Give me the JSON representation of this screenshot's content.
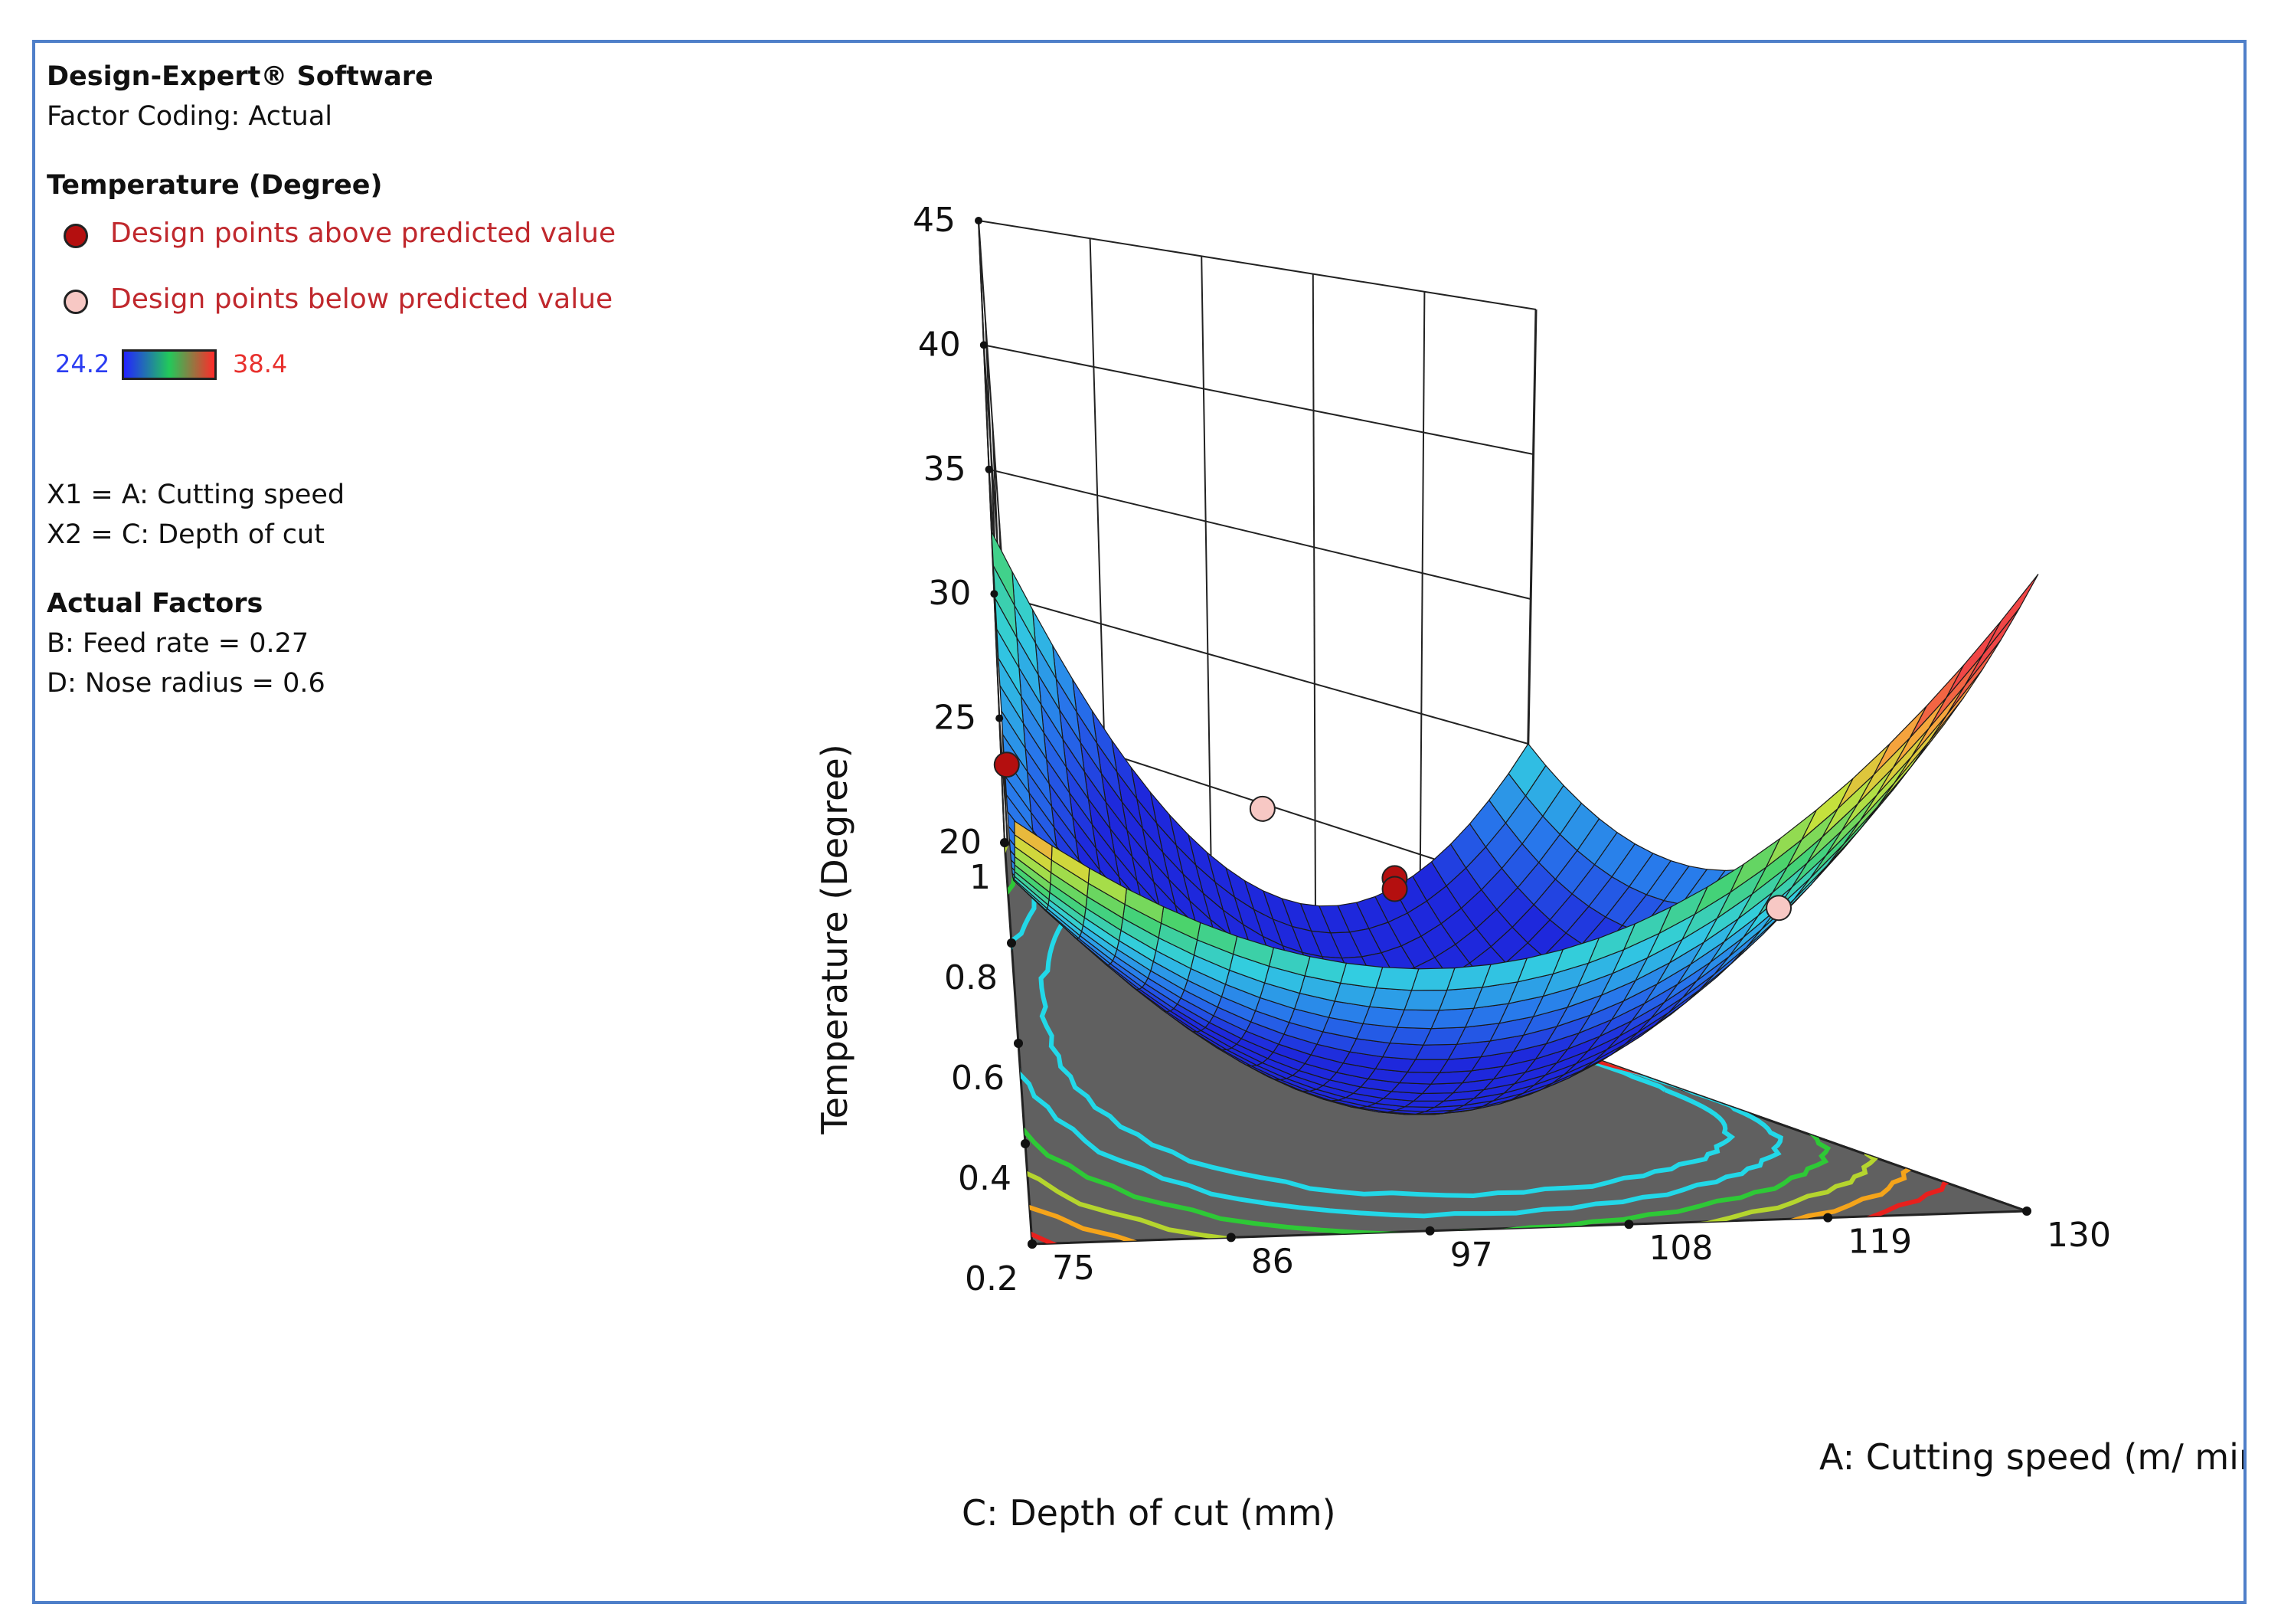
{
  "panel": {
    "software": "Design-Expert® Software",
    "coding": "Factor Coding: Actual",
    "response": "Temperature (Degree)",
    "legend_above": "Design points above predicted value",
    "legend_below": "Design points below predicted value",
    "legend_above_color": "#b40f0f",
    "legend_below_color": "#f7c8c4",
    "color_min": "24.2",
    "color_max": "38.4",
    "color_min_color": "#2323ff",
    "color_max_color": "#ff2a2a",
    "x1": "X1 = A: Cutting speed",
    "x2": "X2 = C: Depth of cut",
    "actual_factors": "Actual Factors",
    "factor_b": "B: Feed rate = 0.27",
    "factor_d": "D: Nose radius = 0.6"
  },
  "chart_data": {
    "type": "surface3d",
    "zlabel": "Temperature (Degree)",
    "xlabel": "A: Cutting speed  (m/ min)",
    "ylabel": "C: Depth of cut   (mm)",
    "xlim": [
      75,
      130
    ],
    "ylim": [
      0.2,
      1
    ],
    "zlim": [
      20,
      45
    ],
    "x_ticks": [
      "75",
      "86",
      "97",
      "108",
      "119",
      "130"
    ],
    "y_ticks": [
      "0.2",
      "0.4",
      "0.6",
      "0.8",
      "1"
    ],
    "z_ticks": [
      "20",
      "25",
      "30",
      "35",
      "40",
      "45"
    ],
    "color_range": [
      24.2,
      38.4
    ],
    "surface_corners": [
      {
        "x": 75,
        "y": 1,
        "z": 32.5
      },
      {
        "x": 75,
        "y": 0.2,
        "z": 37
      },
      {
        "x": 130,
        "y": 0.2,
        "z": 42
      },
      {
        "x": 130,
        "y": 1,
        "z": 30
      }
    ],
    "design_points": [
      {
        "x": 75,
        "y": 0.6,
        "z": 31.2,
        "position": "above"
      },
      {
        "x": 102.5,
        "y": 0.6,
        "z": 27.6,
        "position": "above"
      },
      {
        "x": 102.5,
        "y": 0.6,
        "z": 27.2,
        "position": "above"
      },
      {
        "x": 102.5,
        "y": 1,
        "z": 24.8,
        "position": "below"
      },
      {
        "x": 130,
        "y": 0.6,
        "z": 27.4,
        "position": "below"
      }
    ],
    "contour_levels": [
      26,
      28,
      30,
      32,
      34,
      36
    ],
    "grid": true
  }
}
